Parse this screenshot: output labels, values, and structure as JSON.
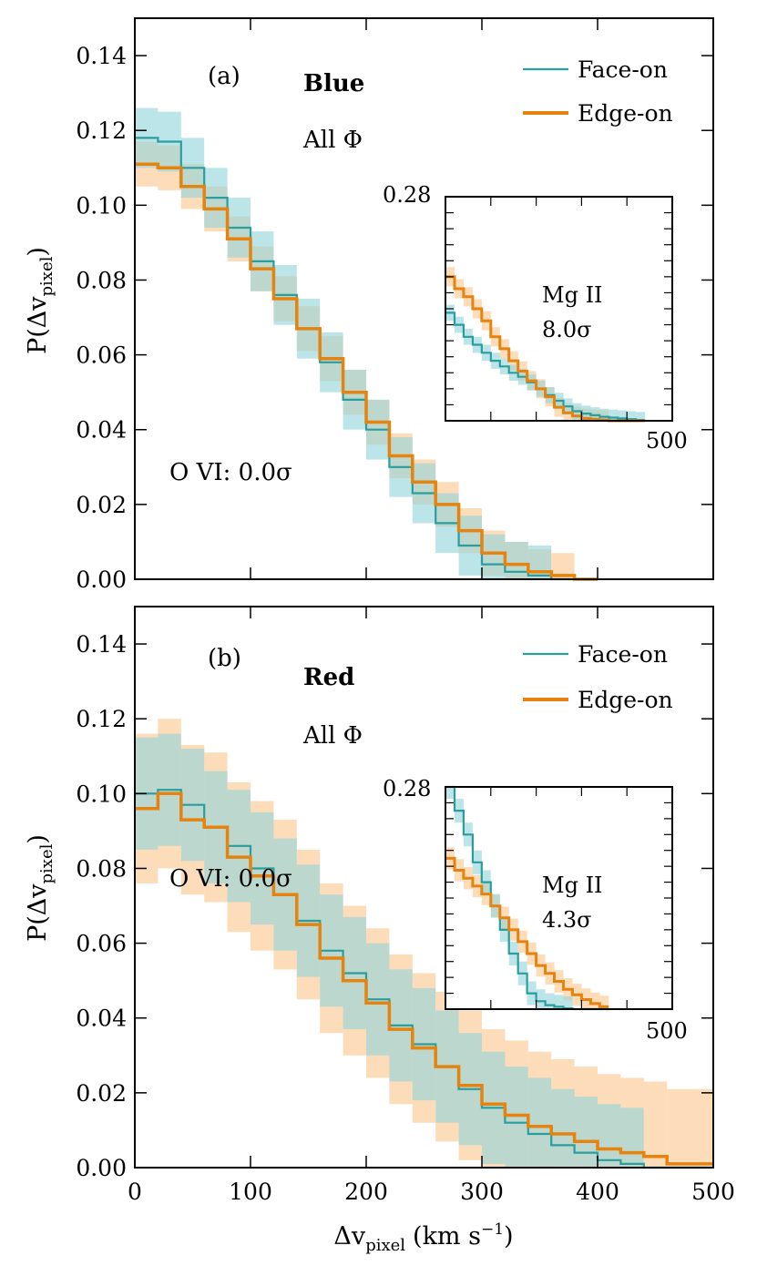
{
  "colors": {
    "face_on": "#2a9d9d",
    "face_on_band": "#8fd3dc",
    "edge_on": "#e6820e",
    "edge_on_band": "#fcc58c",
    "frame": "#000000"
  },
  "shared": {
    "xlabel_main": "Δv",
    "xlabel_sub": "pixel",
    "xlabel_units": "(km s",
    "xlabel_exp": "−1",
    "xlabel_close": ")",
    "ylabel_main": "P(Δv",
    "ylabel_sub": "pixel",
    "ylabel_close": ")",
    "xticks": [
      0,
      100,
      200,
      300,
      400,
      500
    ],
    "xtick_labels": [
      "0",
      "100",
      "200",
      "300",
      "400",
      "500"
    ],
    "yticks": [
      0.0,
      0.02,
      0.04,
      0.06,
      0.08,
      0.1,
      0.12,
      0.14
    ],
    "ytick_labels": [
      "0.00",
      "0.02",
      "0.04",
      "0.06",
      "0.08",
      "0.10",
      "0.12",
      "0.14"
    ],
    "legend": [
      "Face-on",
      "Edge-on"
    ]
  },
  "chart_data": [
    {
      "type": "step",
      "panel_label": "(a)",
      "color_group": "Blue",
      "phi_label": "All Φ",
      "ovi_label": "O VI: 0.0σ",
      "xlim": [
        0,
        500
      ],
      "ylim": [
        0,
        0.15
      ],
      "bin_edges": [
        0,
        20,
        40,
        60,
        80,
        100,
        120,
        140,
        160,
        180,
        200,
        220,
        240,
        260,
        280,
        300,
        320,
        340,
        360,
        380,
        400
      ],
      "series": [
        {
          "name": "Face-on",
          "values": [
            0.118,
            0.117,
            0.11,
            0.102,
            0.094,
            0.085,
            0.076,
            0.067,
            0.058,
            0.048,
            0.04,
            0.03,
            0.023,
            0.015,
            0.009,
            0.004,
            0.002,
            0.001,
            0.0,
            0.0
          ],
          "band": 0.008
        },
        {
          "name": "Edge-on",
          "values": [
            0.111,
            0.11,
            0.105,
            0.099,
            0.091,
            0.083,
            0.075,
            0.067,
            0.059,
            0.05,
            0.042,
            0.033,
            0.026,
            0.02,
            0.013,
            0.007,
            0.004,
            0.002,
            0.001,
            0.0
          ],
          "band": 0.006
        }
      ],
      "inset": {
        "label": "Mg II",
        "sigma_label": "8.0σ",
        "ymax_label": "0.28",
        "xmax_label": "500",
        "xlim": [
          0,
          500
        ],
        "ylim": [
          0,
          0.28
        ],
        "bin_edges": [
          0,
          20,
          40,
          60,
          80,
          100,
          120,
          140,
          160,
          180,
          200,
          220,
          240,
          260,
          280,
          300,
          320,
          340,
          360,
          380,
          400,
          420,
          440
        ],
        "series": [
          {
            "name": "Face-on",
            "values": [
              0.135,
              0.12,
              0.105,
              0.095,
              0.085,
              0.075,
              0.068,
              0.06,
              0.055,
              0.048,
              0.04,
              0.032,
              0.025,
              0.018,
              0.012,
              0.009,
              0.007,
              0.005,
              0.004,
              0.003,
              0.002,
              0.001
            ],
            "band": 0.01
          },
          {
            "name": "Edge-on",
            "values": [
              0.18,
              0.165,
              0.155,
              0.14,
              0.125,
              0.105,
              0.09,
              0.075,
              0.062,
              0.05,
              0.04,
              0.03,
              0.017,
              0.01,
              0.006,
              0.003,
              0.002,
              0.001,
              0.0,
              0.0,
              0.0,
              0.0
            ],
            "band": 0.012
          }
        ]
      }
    },
    {
      "type": "step",
      "panel_label": "(b)",
      "color_group": "Red",
      "phi_label": "All Φ",
      "ovi_label": "O VI: 0.0σ",
      "xlim": [
        0,
        500
      ],
      "ylim": [
        0,
        0.15
      ],
      "bin_edges": [
        0,
        20,
        40,
        60,
        80,
        100,
        120,
        140,
        160,
        180,
        200,
        220,
        240,
        260,
        280,
        300,
        320,
        340,
        360,
        380,
        400,
        420,
        440,
        460,
        480,
        500
      ],
      "series": [
        {
          "name": "Face-on",
          "values": [
            0.1,
            0.101,
            0.097,
            0.091,
            0.086,
            0.08,
            0.073,
            0.066,
            0.058,
            0.052,
            0.045,
            0.038,
            0.033,
            0.027,
            0.021,
            0.016,
            0.012,
            0.009,
            0.006,
            0.004,
            0.002,
            0.001,
            0.0,
            0.0,
            0.0
          ],
          "band": 0.015
        },
        {
          "name": "Edge-on",
          "values": [
            0.096,
            0.1,
            0.093,
            0.091,
            0.083,
            0.078,
            0.073,
            0.065,
            0.056,
            0.05,
            0.044,
            0.037,
            0.032,
            0.027,
            0.022,
            0.017,
            0.014,
            0.011,
            0.009,
            0.007,
            0.005,
            0.004,
            0.003,
            0.001,
            0.001
          ],
          "band": 0.02
        }
      ],
      "inset": {
        "label": "Mg II",
        "sigma_label": "4.3σ",
        "ymax_label": "0.28",
        "xmax_label": "500",
        "xlim": [
          0,
          500
        ],
        "ylim": [
          0,
          0.28
        ],
        "bin_edges": [
          0,
          20,
          40,
          60,
          80,
          100,
          120,
          140,
          160,
          180,
          200,
          220,
          240,
          260,
          280,
          300,
          320,
          340,
          360
        ],
        "series": [
          {
            "name": "Face-on",
            "values": [
              0.28,
              0.25,
              0.22,
              0.185,
              0.16,
              0.13,
              0.1,
              0.07,
              0.045,
              0.02,
              0.01,
              0.005,
              0.003,
              0.001,
              0.0,
              0.0,
              0.0,
              0.0
            ],
            "band": 0.015
          },
          {
            "name": "Edge-on",
            "values": [
              0.19,
              0.175,
              0.165,
              0.155,
              0.145,
              0.13,
              0.115,
              0.1,
              0.085,
              0.07,
              0.055,
              0.045,
              0.035,
              0.025,
              0.018,
              0.012,
              0.007,
              0.003
            ],
            "band": 0.014
          }
        ]
      }
    }
  ]
}
